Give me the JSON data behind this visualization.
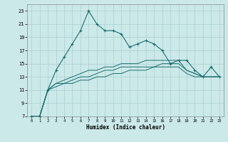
{
  "xlabel": "Humidex (Indice chaleur)",
  "x": [
    0,
    1,
    2,
    3,
    4,
    5,
    6,
    7,
    8,
    9,
    10,
    11,
    12,
    13,
    14,
    15,
    16,
    17,
    18,
    19,
    20,
    21,
    22,
    23
  ],
  "line1": [
    7,
    7,
    11,
    14,
    16,
    18,
    20,
    23,
    21,
    20,
    20,
    19.5,
    17.5,
    18,
    18.5,
    18,
    17,
    15,
    15.5,
    15.5,
    14,
    13,
    14.5,
    13
  ],
  "line2": [
    7,
    7,
    11,
    12,
    12.5,
    13,
    13.5,
    14,
    14,
    14.5,
    14.5,
    15,
    15,
    15,
    15.5,
    15.5,
    15.5,
    15.5,
    15.5,
    14,
    13.5,
    13,
    13,
    13
  ],
  "line3": [
    7,
    7,
    11,
    12,
    12,
    12.5,
    13,
    13,
    13.5,
    14,
    14,
    14.5,
    14.5,
    14.5,
    14.5,
    14.5,
    15,
    15,
    15,
    14,
    13.5,
    13,
    13,
    13
  ],
  "line4": [
    7,
    7,
    11,
    11.5,
    12,
    12,
    12.5,
    12.5,
    13,
    13,
    13.5,
    13.5,
    14,
    14,
    14,
    14.5,
    14.5,
    14.5,
    14.5,
    13.5,
    13,
    13,
    13,
    13
  ],
  "bg_color": "#cce9e9",
  "line_color": "#1a6e6e",
  "grid_color": "#aacfcf",
  "ylim": [
    7,
    24
  ],
  "yticks": [
    7,
    9,
    11,
    13,
    15,
    17,
    19,
    21,
    23
  ],
  "xticks": [
    0,
    1,
    2,
    3,
    4,
    5,
    6,
    7,
    8,
    9,
    10,
    11,
    12,
    13,
    14,
    15,
    16,
    17,
    18,
    19,
    20,
    21,
    22,
    23
  ]
}
